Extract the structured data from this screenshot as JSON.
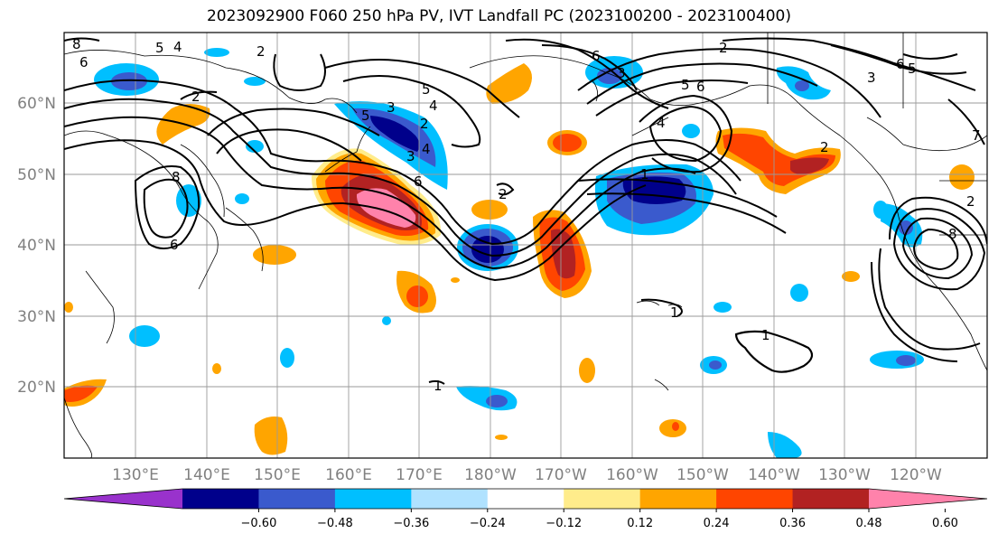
{
  "title": "2023092900 F060 250 hPa PV, IVT Landfall PC (2023100200 - 2023100400)",
  "map": {
    "lon_range": [
      120,
      250
    ],
    "lat_range": [
      10,
      70
    ],
    "lat_labels": [
      "20°N",
      "30°N",
      "40°N",
      "50°N",
      "60°N"
    ],
    "lon_labels": [
      "130°E",
      "140°E",
      "150°E",
      "160°E",
      "170°E",
      "180°W",
      "170°W",
      "160°W",
      "150°W",
      "140°W",
      "130°W",
      "120°W"
    ],
    "gridlines": true,
    "coastline_color": "#000000"
  },
  "colorbar": {
    "ticks": [
      "−0.60",
      "−0.48",
      "−0.36",
      "−0.24",
      "−0.12",
      "0.12",
      "0.24",
      "0.36",
      "0.48",
      "0.60"
    ],
    "colors": [
      "#9932CC",
      "#00008B",
      "#3A5ACD",
      "#00BFFF",
      "#B0E2FF",
      "#FFFFFF",
      "#FFEC8B",
      "#FFA500",
      "#FF4500",
      "#B22222",
      "#FF82AB"
    ],
    "extend": "both"
  },
  "contour_labels": [
    "8",
    "6",
    "5",
    "4",
    "2",
    "2",
    "5",
    "4",
    "3",
    "2",
    "5",
    "4",
    "3",
    "6",
    "8",
    "6",
    "2",
    "2",
    "5",
    "6",
    "4",
    "3",
    "6",
    "5",
    "3",
    "8",
    "1",
    "1",
    "1",
    "2",
    "1",
    "7",
    "6",
    "2"
  ]
}
